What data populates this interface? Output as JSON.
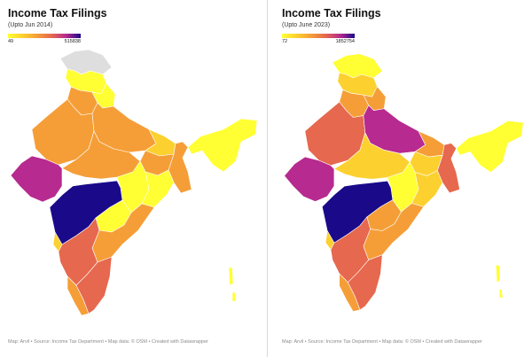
{
  "colors": {
    "low": "#ffff33",
    "mid": "#f59e38",
    "high": "#b72a8f",
    "top": "#1a0a8a",
    "nodata": "#dedede"
  },
  "maps": [
    {
      "title": "Income Tax Filings",
      "subtitle": "(Upto Jun 2014)",
      "legend_min": "49",
      "legend_max": "515838",
      "credit": "Map: Arvil • Source: Income Tax Department • Map data: © OSM • Created with Datawrapper",
      "region_colors": {
        "jk": "#dedede",
        "hp": "#ffff33",
        "pb": "#f59e38",
        "uk": "#ffff33",
        "raj": "#f59e38",
        "up": "#f59e38",
        "guj": "#b72a8f",
        "mp": "#f59e38",
        "bihar": "#fcd12f",
        "jh": "#f59e38",
        "wb": "#f59e38",
        "ne": "#ffff33",
        "mh": "#1a0a8a",
        "ct": "#ffff33",
        "od": "#ffff33",
        "tg": "#ffff33",
        "ap": "#f59e38",
        "ka": "#e6684e",
        "kl": "#f59e38",
        "tn": "#e6684e",
        "goa": "#fcd12f",
        "andaman": "#ffff33"
      }
    },
    {
      "title": "Income Tax Filings",
      "subtitle": "(Upto June 2023)",
      "legend_min": "72",
      "legend_max": "1852754",
      "credit": "Map: Arvil • Source: Income Tax Department • Map data: © OSM • Created with Datawrapper",
      "region_colors": {
        "jk": "#ffff33",
        "hp": "#fcd12f",
        "pb": "#f59e38",
        "uk": "#f59e38",
        "raj": "#e6684e",
        "up": "#b72a8f",
        "guj": "#b72a8f",
        "mp": "#fcd12f",
        "bihar": "#f59e38",
        "jh": "#fcd12f",
        "wb": "#e6684e",
        "ne": "#ffff33",
        "mh": "#1a0a8a",
        "ct": "#ffff33",
        "od": "#fcd12f",
        "tg": "#f59e38",
        "ap": "#f59e38",
        "ka": "#e6684e",
        "kl": "#f59e38",
        "tn": "#e6684e",
        "goa": "#fcd12f",
        "andaman": "#ffff33"
      }
    }
  ]
}
